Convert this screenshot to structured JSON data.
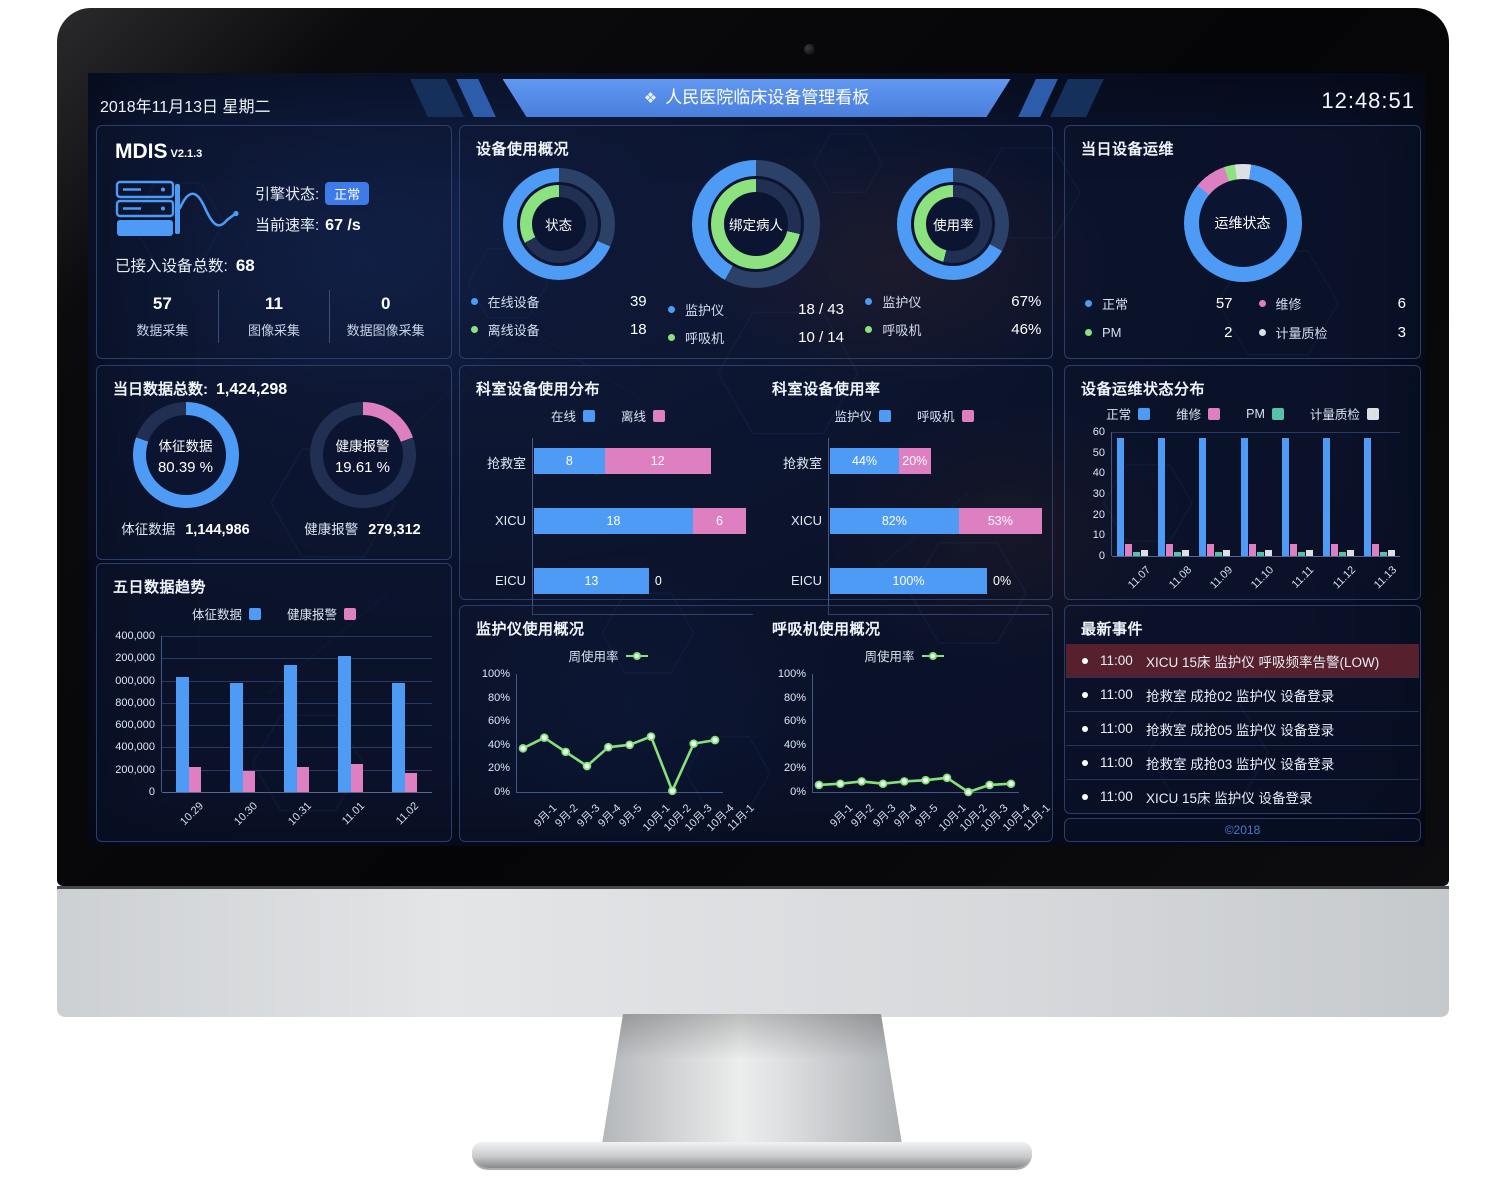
{
  "colors": {
    "blue": "#4E9BF5",
    "green": "#8BE27E",
    "pink": "#DE7FC2",
    "teal": "#56C2A7",
    "white": "#DCDFE4",
    "track": "#2C4168",
    "track2": "#202F52",
    "line": "#86E07D",
    "badge": "#3D7BE8",
    "alert_bg": "#56202C"
  },
  "header": {
    "date": "2018年11月13日 星期二",
    "title": "人民医院临床设备管理看板",
    "title_icon": "❖",
    "time": "12:48:51"
  },
  "mdis": {
    "title": "MDIS",
    "version": "V2.1.3",
    "engine_label": "引擎状态:",
    "engine_status": "正常",
    "rate_label": "当前速率:",
    "rate_value": "67 /s",
    "total_label": "已接入设备总数:",
    "total_value": "68",
    "stats": [
      {
        "value": "57",
        "label": "数据采集"
      },
      {
        "value": "11",
        "label": "图像采集"
      },
      {
        "value": "0",
        "label": "数据图像采集"
      }
    ]
  },
  "overview": {
    "title": "设备使用概况",
    "donuts": [
      {
        "name": "状态",
        "outer_pct": 68.4,
        "inner_pct": 33,
        "legend": [
          {
            "c": "blue",
            "label": "在线设备",
            "value": "39"
          },
          {
            "c": "green",
            "label": "离线设备",
            "value": "18"
          }
        ]
      },
      {
        "name": "绑定病人",
        "outer_pct": 41.9,
        "inner_pct": 71.4,
        "legend": [
          {
            "c": "blue",
            "label": "监护仪",
            "value": "18 / 43"
          },
          {
            "c": "green",
            "label": "呼吸机",
            "value": "10 / 14"
          }
        ]
      },
      {
        "name": "使用率",
        "outer_pct": 67,
        "inner_pct": 46,
        "legend": [
          {
            "c": "blue",
            "label": "监护仪",
            "value": "67%"
          },
          {
            "c": "green",
            "label": "呼吸机",
            "value": "46%"
          }
        ]
      }
    ]
  },
  "ops_today": {
    "title": "当日设备运维",
    "center": "运维状态",
    "segments": [
      {
        "c": "white",
        "v": 3
      },
      {
        "c": "blue",
        "v": 57
      },
      {
        "c": "pink",
        "v": 6
      },
      {
        "c": "green",
        "v": 2
      }
    ],
    "start_deg": -8,
    "legend": [
      {
        "c": "blue",
        "label": "正常",
        "value": "57"
      },
      {
        "c": "pink",
        "label": "维修",
        "value": "6"
      },
      {
        "c": "green",
        "label": "PM",
        "value": "2"
      },
      {
        "c": "white",
        "label": "计量质检",
        "value": "3"
      }
    ]
  },
  "data_today": {
    "title_label": "当日数据总数:",
    "title_value": "1,424,298",
    "donuts": [
      {
        "name": "体征数据",
        "pct": 80.39,
        "pct_text": "80.39 %",
        "c": "blue",
        "bottom_label": "体征数据",
        "bottom_value": "1,144,986"
      },
      {
        "name": "健康报警",
        "pct": 19.61,
        "pct_text": "19.61 %",
        "c": "pink",
        "bottom_label": "健康报警",
        "bottom_value": "279,312"
      }
    ]
  },
  "trend5": {
    "title": "五日数据趋势",
    "type": "bar",
    "legend": [
      {
        "c": "blue",
        "label": "体征数据"
      },
      {
        "c": "pink",
        "label": "健康报警"
      }
    ],
    "categories": [
      "10.29",
      "10.30",
      "10.31",
      "11.01",
      "11.02"
    ],
    "series": [
      {
        "name": "体征数据",
        "c": "blue",
        "values": [
          1030000,
          975000,
          1140000,
          1225000,
          975000
        ]
      },
      {
        "name": "健康报警",
        "c": "pink",
        "values": [
          225000,
          185000,
          225000,
          250000,
          170000
        ]
      }
    ],
    "ymax": 1400000,
    "ytick_labels": [
      "400,000",
      "200,000",
      "000,000",
      "800,000",
      "600,000",
      "400,000",
      "200,000",
      "0"
    ]
  },
  "dept_dist": {
    "title": "科室设备使用分布",
    "type": "stacked-hbar",
    "legend": [
      {
        "c": "blue",
        "label": "在线"
      },
      {
        "c": "pink",
        "label": "离线"
      }
    ],
    "categories": [
      "抢救室",
      "XICU",
      "EICU"
    ],
    "series": [
      {
        "name": "在线",
        "c": "blue",
        "values": [
          8,
          18,
          13
        ]
      },
      {
        "name": "离线",
        "c": "pink",
        "values": [
          12,
          6,
          0
        ]
      }
    ],
    "value_labels": [
      [
        "8",
        "12"
      ],
      [
        "18",
        "6"
      ],
      [
        "13",
        "0"
      ]
    ],
    "max_total": 24
  },
  "dept_usage": {
    "title": "科室设备使用率",
    "type": "stacked-hbar",
    "legend": [
      {
        "c": "blue",
        "label": "监护仪"
      },
      {
        "c": "pink",
        "label": "呼吸机"
      }
    ],
    "categories": [
      "抢救室",
      "XICU",
      "EICU"
    ],
    "series": [
      {
        "name": "监护仪",
        "c": "blue",
        "values": [
          44,
          82,
          100
        ]
      },
      {
        "name": "呼吸机",
        "c": "pink",
        "values": [
          20,
          53,
          0
        ]
      }
    ],
    "value_labels": [
      [
        "44%",
        "20%"
      ],
      [
        "82%",
        "53%"
      ],
      [
        "100%",
        "0%"
      ]
    ],
    "max_total": 135
  },
  "ops_dist": {
    "title": "设备运维状态分布",
    "type": "bar",
    "legend": [
      {
        "c": "blue",
        "label": "正常"
      },
      {
        "c": "pink",
        "label": "维修"
      },
      {
        "c": "teal",
        "label": "PM"
      },
      {
        "c": "white",
        "label": "计量质检"
      }
    ],
    "categories": [
      "11.07",
      "11.08",
      "11.09",
      "11.10",
      "11.11",
      "11.12",
      "11.13"
    ],
    "series": [
      {
        "name": "正常",
        "c": "blue",
        "values": [
          57,
          57,
          57,
          57,
          57,
          57,
          57
        ]
      },
      {
        "name": "维修",
        "c": "pink",
        "values": [
          6,
          6,
          6,
          6,
          6,
          6,
          6
        ]
      },
      {
        "name": "PM",
        "c": "teal",
        "values": [
          2,
          2,
          2,
          2,
          2,
          2,
          2
        ]
      },
      {
        "name": "计量质检",
        "c": "white",
        "values": [
          3,
          3,
          3,
          3,
          3,
          3,
          3
        ]
      }
    ],
    "ymax": 60,
    "yticks": [
      "60",
      "50",
      "40",
      "30",
      "20",
      "10",
      "0"
    ]
  },
  "monitor_usage": {
    "title": "监护仪使用概况",
    "type": "line",
    "legend_label": "周使用率",
    "x": [
      "9月-1",
      "9月-2",
      "9月-3",
      "9月-4",
      "9月-5",
      "10月-1",
      "10月-2",
      "10月-3",
      "10月-4",
      "11月-1"
    ],
    "values": [
      37,
      46,
      34,
      22,
      38,
      40,
      47,
      1,
      41,
      44
    ],
    "yticks": [
      "100%",
      "80%",
      "60%",
      "40%",
      "20%",
      "0%"
    ],
    "ymax": 100
  },
  "vent_usage": {
    "title": "呼吸机使用概况",
    "type": "line",
    "legend_label": "周使用率",
    "x": [
      "9月-1",
      "9月-2",
      "9月-3",
      "9月-4",
      "9月-5",
      "10月-1",
      "10月-2",
      "10月-3",
      "10月-4",
      "11月-1"
    ],
    "values": [
      6,
      7,
      9,
      7,
      9,
      10,
      12,
      0,
      6,
      7
    ],
    "yticks": [
      "100%",
      "80%",
      "60%",
      "40%",
      "20%",
      "0%"
    ],
    "ymax": 100
  },
  "events": {
    "title": "最新事件",
    "footer": "©2018",
    "items": [
      {
        "time": "11:00",
        "text": "XICU 15床 监护仪 呼吸频率告警(LOW)",
        "alert": true
      },
      {
        "time": "11:00",
        "text": "抢救室 成抢02 监护仪 设备登录",
        "alert": false
      },
      {
        "time": "11:00",
        "text": "抢救室 成抢05 监护仪 设备登录",
        "alert": false
      },
      {
        "time": "11:00",
        "text": "抢救室 成抢03 监护仪 设备登录",
        "alert": false
      },
      {
        "time": "11:00",
        "text": "XICU 15床 监护仪 设备登录",
        "alert": false
      }
    ]
  }
}
